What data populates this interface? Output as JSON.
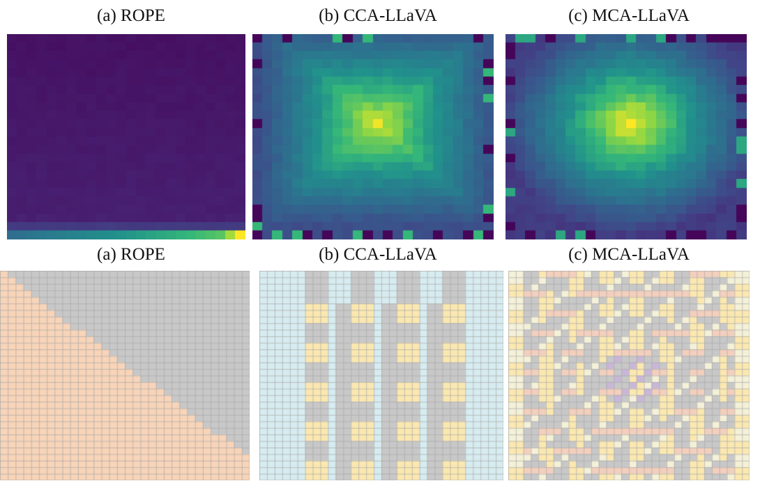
{
  "titles": {
    "top": [
      "(a) ROPE",
      "(b) CCA-LLaVA",
      "(c) MCA-LLaVA"
    ],
    "bottom": [
      "(a) ROPE",
      "(b) CCA-LLaVA",
      "(c) MCA-LLaVA"
    ]
  },
  "colors": {
    "viridis_low": "#440154",
    "viridis_mid": "#21918c",
    "viridis_high": "#fde725",
    "mask_orange": "#f8d4b8",
    "mask_gray": "#c8c8c8",
    "mask_lightblue": "#d7ecf0",
    "mask_yellow": "#fbe8b0",
    "mask_salmon": "#f3cfbd",
    "mask_purple": "#c9b7d8",
    "mask_cream": "#f4f1d8",
    "grid_line": "#a7a7a7"
  },
  "figure": {
    "heatmap_grid": 24,
    "heatmaps": [
      {
        "name": "rope",
        "pattern": "row-gradient"
      },
      {
        "name": "cca",
        "pattern": "concentric-square",
        "peak": "center"
      },
      {
        "name": "mca",
        "pattern": "radial",
        "peak": "center"
      }
    ],
    "mask_grid": 32,
    "masks": [
      {
        "name": "rope",
        "pattern": "lower-triangular causal"
      },
      {
        "name": "cca",
        "pattern": "concentric causal"
      },
      {
        "name": "mca",
        "pattern": "multi-directional causal"
      }
    ]
  }
}
